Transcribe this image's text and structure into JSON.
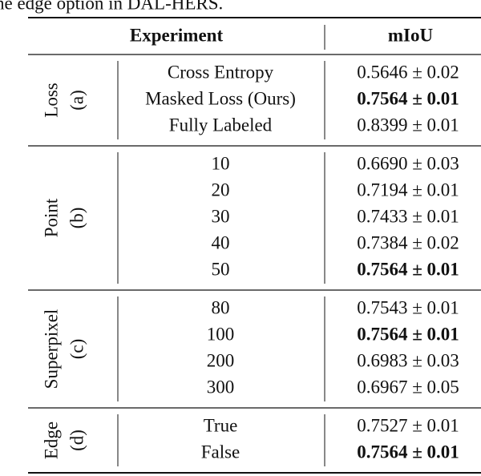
{
  "caption": "he edge option in DAL-HERS.",
  "header": {
    "experiment": "Experiment",
    "miou": "mIoU"
  },
  "groups": [
    {
      "label": "Loss",
      "sublabel": "(a)",
      "rows": [
        {
          "experiment": "Cross Entropy",
          "miou": "0.5646 ± 0.02",
          "bold": false
        },
        {
          "experiment": "Masked Loss (Ours)",
          "miou": "0.7564 ± 0.01",
          "bold": true
        },
        {
          "experiment": "Fully Labeled",
          "miou": "0.8399 ± 0.01",
          "bold": false
        }
      ]
    },
    {
      "label": "Point",
      "sublabel": "(b)",
      "rows": [
        {
          "experiment": "10",
          "miou": "0.6690 ± 0.03",
          "bold": false
        },
        {
          "experiment": "20",
          "miou": "0.7194 ± 0.01",
          "bold": false
        },
        {
          "experiment": "30",
          "miou": "0.7433 ± 0.01",
          "bold": false
        },
        {
          "experiment": "40",
          "miou": "0.7384 ± 0.02",
          "bold": false
        },
        {
          "experiment": "50",
          "miou": "0.7564 ± 0.01",
          "bold": true
        }
      ]
    },
    {
      "label": "Superpixel",
      "sublabel": "(c)",
      "rows": [
        {
          "experiment": "80",
          "miou": "0.7543 ± 0.01",
          "bold": false
        },
        {
          "experiment": "100",
          "miou": "0.7564 ± 0.01",
          "bold": true
        },
        {
          "experiment": "200",
          "miou": "0.6983 ± 0.03",
          "bold": false
        },
        {
          "experiment": "300",
          "miou": "0.6967 ± 0.05",
          "bold": false
        }
      ]
    },
    {
      "label": "Edge",
      "sublabel": "(d)",
      "rows": [
        {
          "experiment": "True",
          "miou": "0.7527 ± 0.01",
          "bold": false
        },
        {
          "experiment": "False",
          "miou": "0.7564 ± 0.01",
          "bold": true
        }
      ]
    }
  ]
}
